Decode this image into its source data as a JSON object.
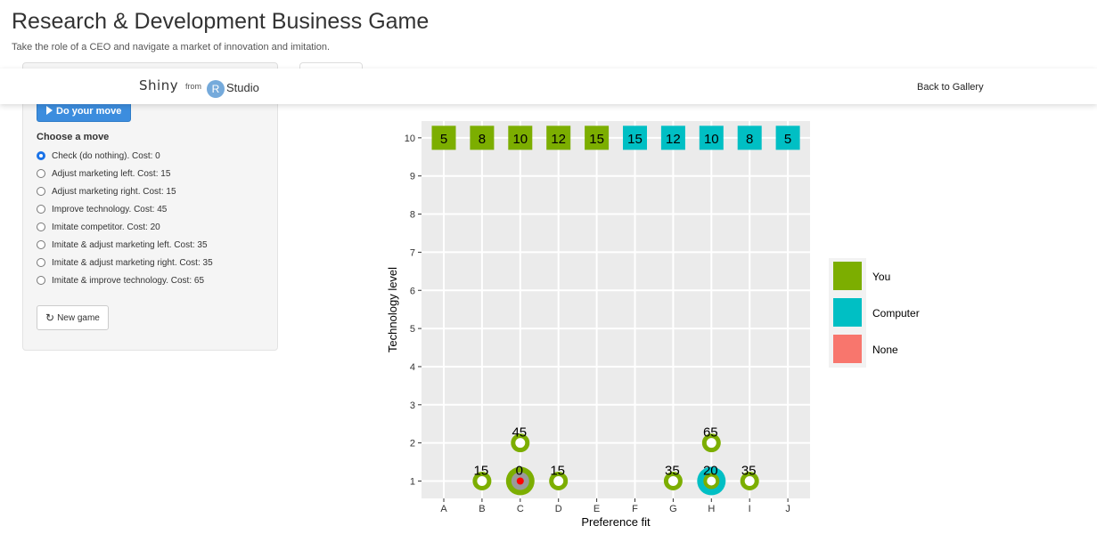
{
  "app": {
    "title": "Research & Development Business Game",
    "subtitle": "Take the role of a CEO and navigate a market of innovation and imitation."
  },
  "banner": {
    "brand": "Shiny",
    "from": "from",
    "r_letter": "R",
    "studio": "Studio",
    "back_link": "Back to Gallery"
  },
  "sidebar": {
    "do_move_label": "Do your move",
    "moves_heading": "Choose a move",
    "selected_index": 0,
    "moves": [
      "Check (do nothing). Cost: 0",
      "Adjust marketing left. Cost: 15",
      "Adjust marketing right. Cost: 15",
      "Improve technology. Cost: 45",
      "Imitate competitor. Cost: 20",
      "Imitate & adjust marketing left. Cost: 35",
      "Imitate & adjust marketing right. Cost: 35",
      "Imitate & improve technology. Cost: 65"
    ],
    "new_game_label": "New game"
  },
  "colors": {
    "you": "#7cae00",
    "computer": "#00bfc4",
    "none": "#f8766d",
    "panel_bg": "#ebebeb",
    "button_blue": "#3c8dde"
  },
  "chart_data": {
    "type": "scatter",
    "xlabel": "Preference fit",
    "ylabel": "Technology level",
    "categories": [
      "A",
      "B",
      "C",
      "D",
      "E",
      "F",
      "G",
      "H",
      "I",
      "J"
    ],
    "ylim": [
      1,
      10
    ],
    "yticks": [
      1,
      2,
      3,
      4,
      5,
      6,
      7,
      8,
      9,
      10
    ],
    "grid": true,
    "legend": {
      "placement": "right",
      "entries": [
        {
          "label": "You",
          "color": "#7cae00"
        },
        {
          "label": "Computer",
          "color": "#00bfc4"
        },
        {
          "label": "None",
          "color": "#f8766d"
        }
      ]
    },
    "market_tiles": [
      {
        "x": "A",
        "y": 10,
        "value": 5,
        "owner": "You"
      },
      {
        "x": "B",
        "y": 10,
        "value": 8,
        "owner": "You"
      },
      {
        "x": "C",
        "y": 10,
        "value": 10,
        "owner": "You"
      },
      {
        "x": "D",
        "y": 10,
        "value": 12,
        "owner": "You"
      },
      {
        "x": "E",
        "y": 10,
        "value": 15,
        "owner": "You"
      },
      {
        "x": "F",
        "y": 10,
        "value": 15,
        "owner": "Computer"
      },
      {
        "x": "G",
        "y": 10,
        "value": 12,
        "owner": "Computer"
      },
      {
        "x": "H",
        "y": 10,
        "value": 10,
        "owner": "Computer"
      },
      {
        "x": "I",
        "y": 10,
        "value": 8,
        "owner": "Computer"
      },
      {
        "x": "J",
        "y": 10,
        "value": 5,
        "owner": "Computer"
      }
    ],
    "move_options": [
      {
        "x": "B",
        "y": 1,
        "cost": 15
      },
      {
        "x": "C",
        "y": 1,
        "cost": 0
      },
      {
        "x": "D",
        "y": 1,
        "cost": 15
      },
      {
        "x": "C",
        "y": 2,
        "cost": 45
      },
      {
        "x": "G",
        "y": 1,
        "cost": 35
      },
      {
        "x": "H",
        "y": 1,
        "cost": 20
      },
      {
        "x": "I",
        "y": 1,
        "cost": 35
      },
      {
        "x": "H",
        "y": 2,
        "cost": 65
      }
    ],
    "positions": [
      {
        "x": "C",
        "y": 1,
        "owner": "You"
      },
      {
        "x": "H",
        "y": 1,
        "owner": "Computer"
      }
    ],
    "selected_move": {
      "x": "C",
      "y": 1
    }
  }
}
